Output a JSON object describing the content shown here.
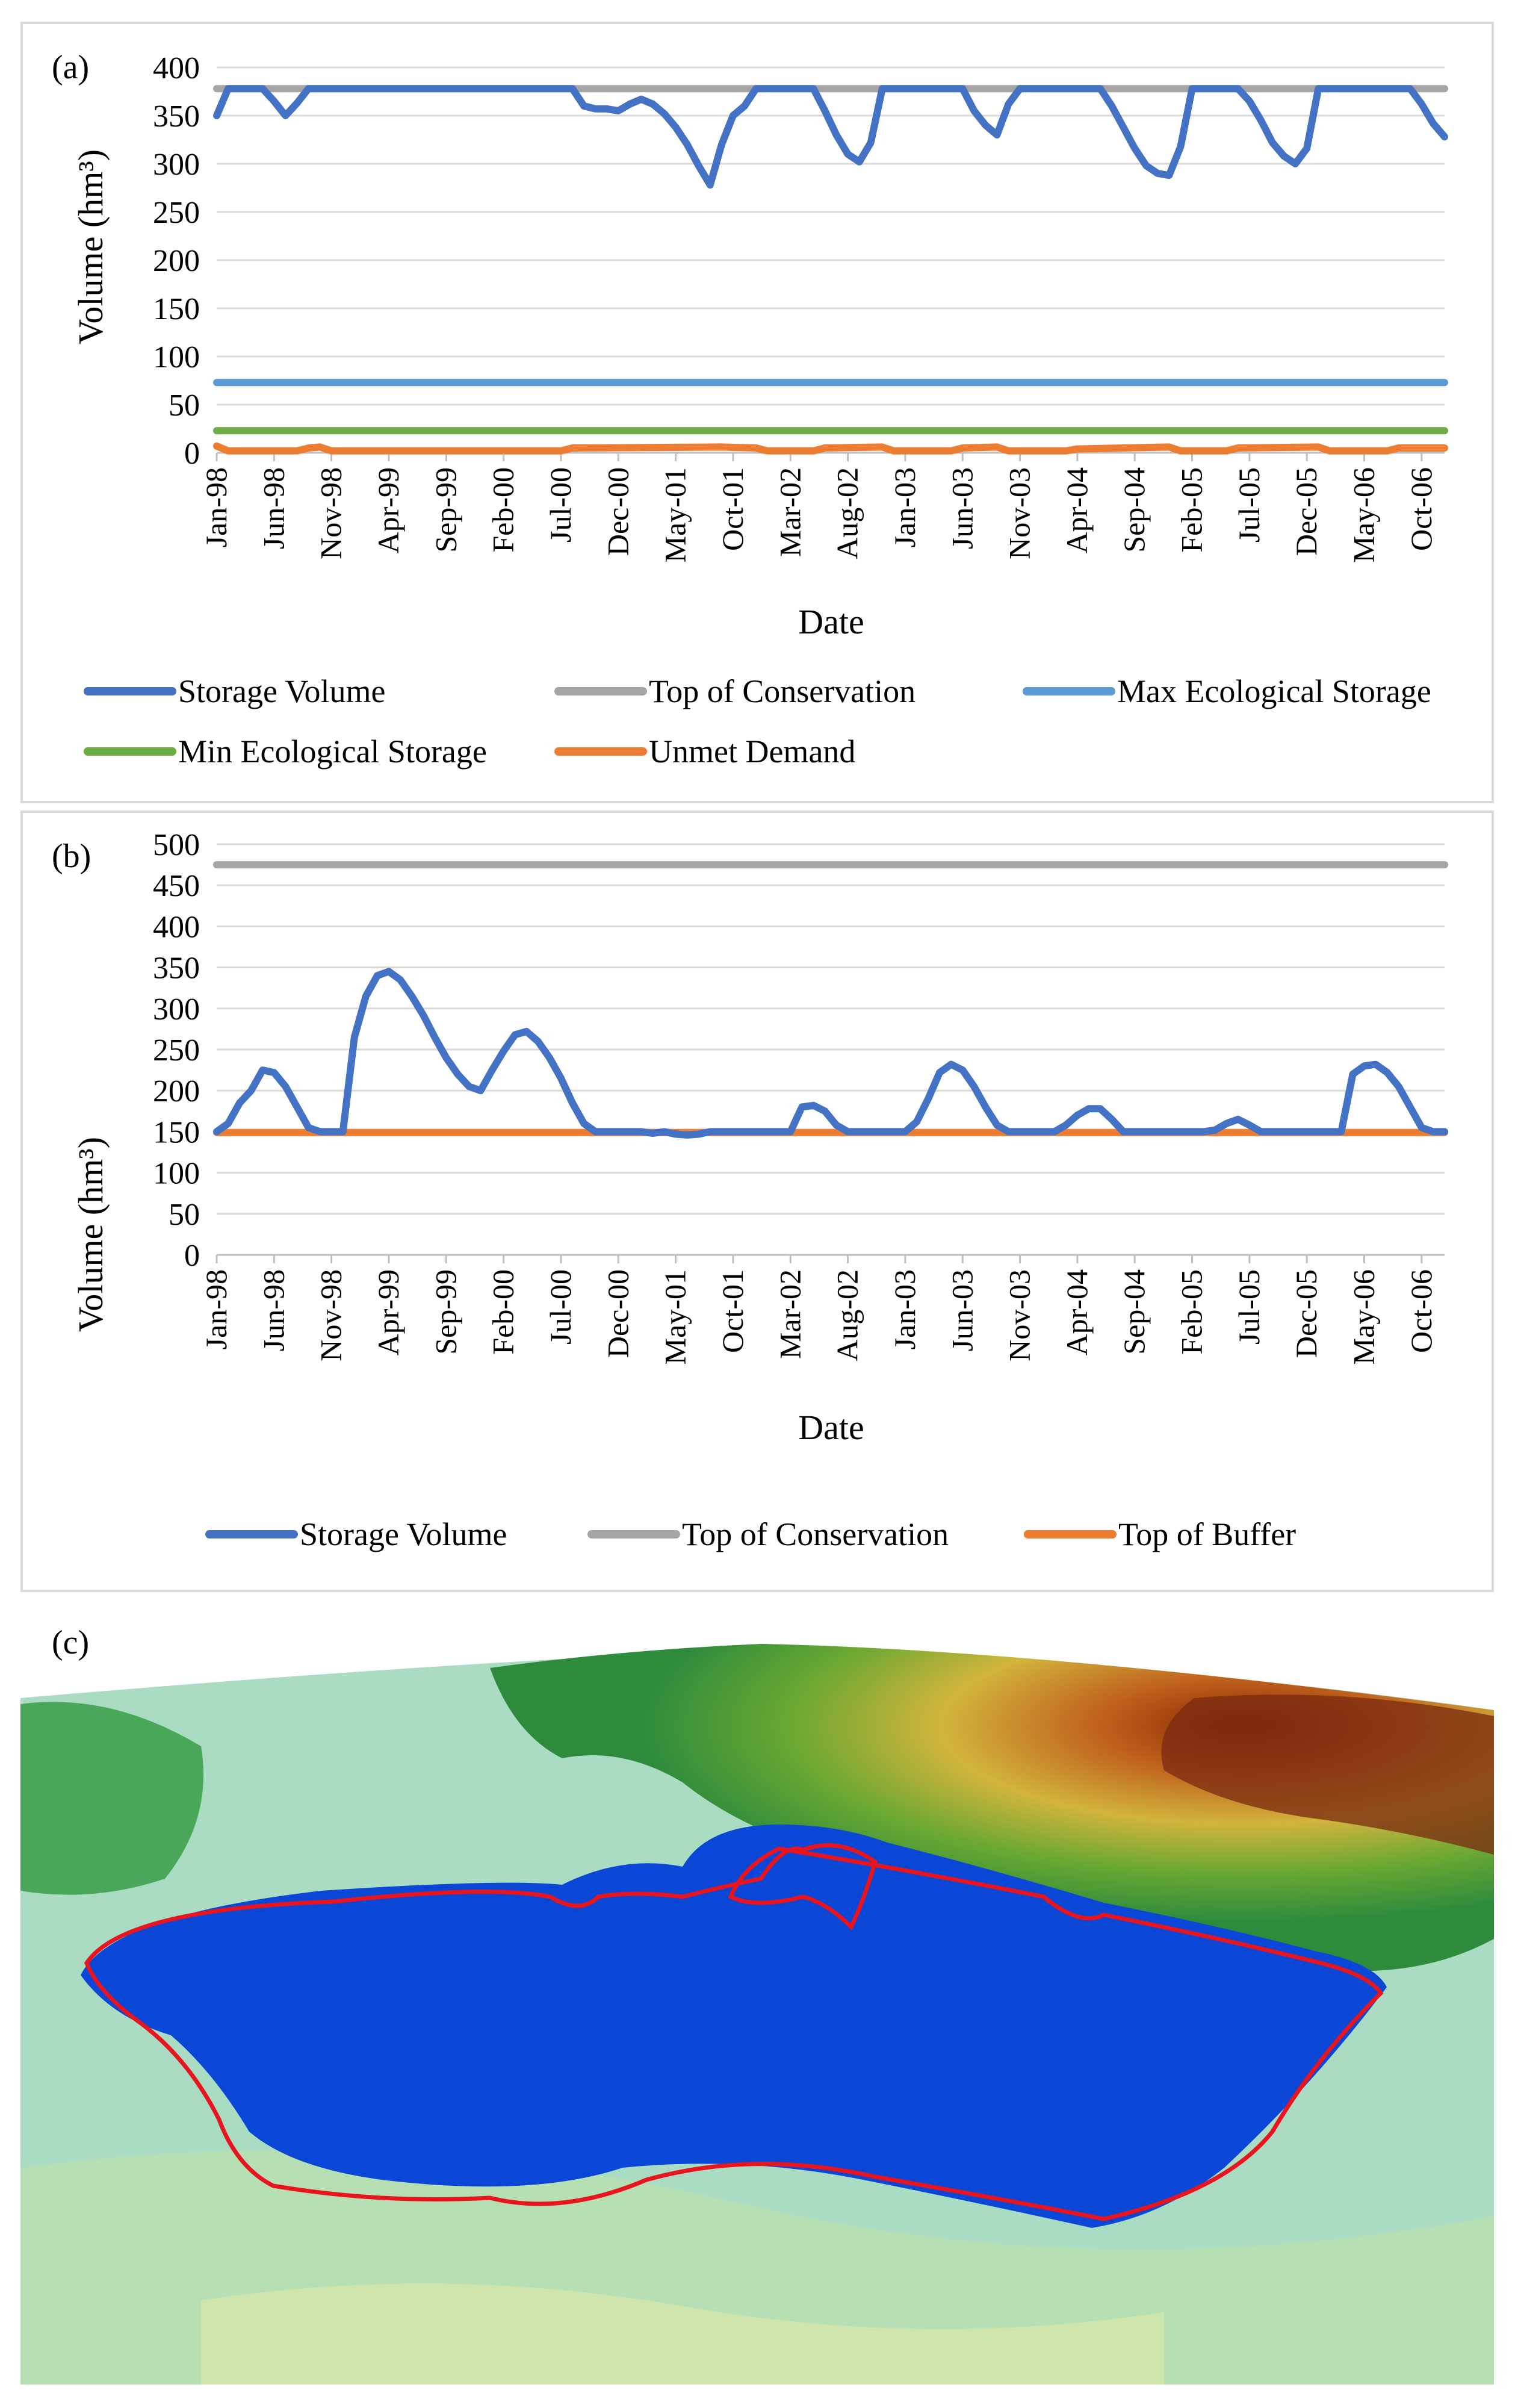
{
  "chart_data": [
    {
      "panel": "(a)",
      "type": "line",
      "ylabel": "Volume (hm³)",
      "xlabel": "Date",
      "ylim": [
        0,
        400
      ],
      "yticks": [
        0,
        50,
        100,
        150,
        200,
        250,
        300,
        350,
        400
      ],
      "x_tick_labels": [
        "Jan-98",
        "Jun-98",
        "Nov-98",
        "Apr-99",
        "Sep-99",
        "Feb-00",
        "Jul-00",
        "Dec-00",
        "May-01",
        "Oct-01",
        "Mar-02",
        "Aug-02",
        "Jan-03",
        "Jun-03",
        "Nov-03",
        "Apr-04",
        "Sep-04",
        "Feb-05",
        "Jul-05",
        "Dec-05",
        "May-06",
        "Oct-06"
      ],
      "n_months": 108,
      "series": [
        {
          "name": "Storage Volume",
          "color": "#4472C4",
          "points": [
            [
              0,
              350
            ],
            [
              1,
              378
            ],
            [
              4,
              378
            ],
            [
              5,
              365
            ],
            [
              6,
              350
            ],
            [
              7,
              363
            ],
            [
              8,
              378
            ],
            [
              31,
              378
            ],
            [
              32,
              360
            ],
            [
              33,
              357
            ],
            [
              34,
              357
            ],
            [
              35,
              355
            ],
            [
              36,
              362
            ],
            [
              37,
              367
            ],
            [
              38,
              362
            ],
            [
              39,
              352
            ],
            [
              40,
              338
            ],
            [
              41,
              320
            ],
            [
              42,
              298
            ],
            [
              43,
              278
            ],
            [
              44,
              320
            ],
            [
              45,
              350
            ],
            [
              46,
              360
            ],
            [
              47,
              378
            ],
            [
              52,
              378
            ],
            [
              53,
              355
            ],
            [
              54,
              330
            ],
            [
              55,
              310
            ],
            [
              56,
              302
            ],
            [
              57,
              322
            ],
            [
              58,
              378
            ],
            [
              65,
              378
            ],
            [
              66,
              355
            ],
            [
              67,
              340
            ],
            [
              68,
              330
            ],
            [
              69,
              362
            ],
            [
              70,
              378
            ],
            [
              77,
              378
            ],
            [
              78,
              360
            ],
            [
              79,
              338
            ],
            [
              80,
              316
            ],
            [
              81,
              298
            ],
            [
              82,
              290
            ],
            [
              83,
              288
            ],
            [
              84,
              318
            ],
            [
              85,
              378
            ],
            [
              89,
              378
            ],
            [
              90,
              365
            ],
            [
              91,
              345
            ],
            [
              92,
              322
            ],
            [
              93,
              308
            ],
            [
              94,
              300
            ],
            [
              95,
              316
            ],
            [
              96,
              378
            ],
            [
              104,
              378
            ],
            [
              105,
              362
            ],
            [
              106,
              342
            ],
            [
              107,
              328
            ]
          ]
        },
        {
          "name": "Top of Conservation",
          "color": "#A5A5A5",
          "constant": 378
        },
        {
          "name": "Max Ecological Storage",
          "color": "#5B9BD5",
          "constant": 73
        },
        {
          "name": "Min Ecological Storage",
          "color": "#70AD47",
          "constant": 23
        },
        {
          "name": "Unmet Demand",
          "color": "#ED7D31",
          "points": [
            [
              0,
              7
            ],
            [
              1,
              2
            ],
            [
              7,
              2
            ],
            [
              8,
              5
            ],
            [
              9,
              6
            ],
            [
              10,
              2
            ],
            [
              30,
              2
            ],
            [
              31,
              5
            ],
            [
              44,
              6
            ],
            [
              47,
              5
            ],
            [
              48,
              2
            ],
            [
              52,
              2
            ],
            [
              53,
              5
            ],
            [
              58,
              6
            ],
            [
              59,
              2
            ],
            [
              64,
              2
            ],
            [
              65,
              5
            ],
            [
              68,
              6
            ],
            [
              69,
              2
            ],
            [
              74,
              2
            ],
            [
              75,
              4
            ],
            [
              83,
              6
            ],
            [
              84,
              2
            ],
            [
              88,
              2
            ],
            [
              89,
              5
            ],
            [
              96,
              6
            ],
            [
              97,
              2
            ],
            [
              102,
              2
            ],
            [
              103,
              5
            ],
            [
              107,
              5
            ]
          ]
        }
      ]
    },
    {
      "panel": "(b)",
      "type": "line",
      "ylabel": "Volume (hm³)",
      "xlabel": "Date",
      "ylim": [
        0,
        500
      ],
      "yticks": [
        0,
        50,
        100,
        150,
        200,
        250,
        300,
        350,
        400,
        450,
        500
      ],
      "x_tick_labels": [
        "Jan-98",
        "Jun-98",
        "Nov-98",
        "Apr-99",
        "Sep-99",
        "Feb-00",
        "Jul-00",
        "Dec-00",
        "May-01",
        "Oct-01",
        "Mar-02",
        "Aug-02",
        "Jan-03",
        "Jun-03",
        "Nov-03",
        "Apr-04",
        "Sep-04",
        "Feb-05",
        "Jul-05",
        "Dec-05",
        "May-06",
        "Oct-06"
      ],
      "n_months": 108,
      "series": [
        {
          "name": "Storage Volume",
          "color": "#4472C4",
          "points": [
            [
              0,
              150
            ],
            [
              1,
              160
            ],
            [
              2,
              185
            ],
            [
              3,
              200
            ],
            [
              4,
              225
            ],
            [
              5,
              222
            ],
            [
              6,
              205
            ],
            [
              7,
              180
            ],
            [
              8,
              155
            ],
            [
              9,
              150
            ],
            [
              11,
              150
            ],
            [
              12,
              265
            ],
            [
              13,
              315
            ],
            [
              14,
              340
            ],
            [
              15,
              345
            ],
            [
              16,
              335
            ],
            [
              17,
              315
            ],
            [
              18,
              292
            ],
            [
              19,
              265
            ],
            [
              20,
              240
            ],
            [
              21,
              220
            ],
            [
              22,
              205
            ],
            [
              23,
              200
            ],
            [
              24,
              225
            ],
            [
              25,
              248
            ],
            [
              26,
              268
            ],
            [
              27,
              272
            ],
            [
              28,
              260
            ],
            [
              29,
              240
            ],
            [
              30,
              215
            ],
            [
              31,
              185
            ],
            [
              32,
              160
            ],
            [
              33,
              150
            ],
            [
              37,
              150
            ],
            [
              38,
              148
            ],
            [
              39,
              150
            ],
            [
              40,
              147
            ],
            [
              41,
              146
            ],
            [
              42,
              147
            ],
            [
              43,
              150
            ],
            [
              50,
              150
            ],
            [
              51,
              180
            ],
            [
              52,
              182
            ],
            [
              53,
              175
            ],
            [
              54,
              158
            ],
            [
              55,
              150
            ],
            [
              60,
              150
            ],
            [
              61,
              162
            ],
            [
              62,
              190
            ],
            [
              63,
              222
            ],
            [
              64,
              232
            ],
            [
              65,
              225
            ],
            [
              66,
              205
            ],
            [
              67,
              180
            ],
            [
              68,
              158
            ],
            [
              69,
              150
            ],
            [
              73,
              150
            ],
            [
              74,
              158
            ],
            [
              75,
              170
            ],
            [
              76,
              178
            ],
            [
              77,
              178
            ],
            [
              78,
              165
            ],
            [
              79,
              150
            ],
            [
              86,
              150
            ],
            [
              87,
              152
            ],
            [
              88,
              160
            ],
            [
              89,
              165
            ],
            [
              90,
              158
            ],
            [
              91,
              150
            ],
            [
              97,
              150
            ],
            [
              98,
              150
            ],
            [
              99,
              220
            ],
            [
              100,
              230
            ],
            [
              101,
              232
            ],
            [
              102,
              222
            ],
            [
              103,
              205
            ],
            [
              104,
              180
            ],
            [
              105,
              155
            ],
            [
              106,
              150
            ],
            [
              107,
              150
            ]
          ]
        },
        {
          "name": "Top of Conservation",
          "color": "#A5A5A5",
          "constant": 475
        },
        {
          "name": "Top of Buffer",
          "color": "#ED7D31",
          "constant": 149
        }
      ]
    }
  ],
  "panels": {
    "a": {
      "label": "(a)",
      "ylabel": "Volume (hm³)",
      "xlabel": "Date",
      "legend": [
        "Storage Volume",
        "Top of Conservation",
        "Max Ecological Storage",
        "Min Ecological Storage",
        "Unmet Demand"
      ]
    },
    "b": {
      "label": "(b)",
      "ylabel": "Volume (hm³)",
      "xlabel": "Date",
      "legend": [
        "Storage Volume",
        "Top of Conservation",
        "Top of Buffer"
      ]
    },
    "c": {
      "label": "(c)"
    }
  }
}
